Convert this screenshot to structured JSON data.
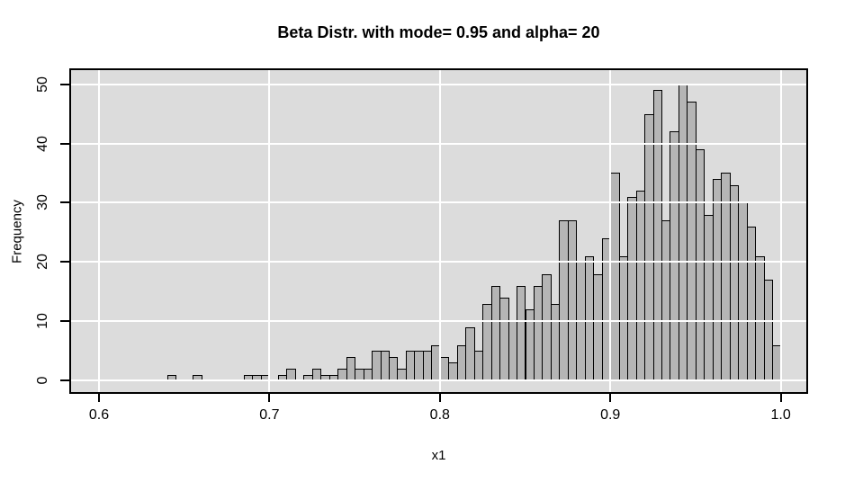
{
  "chart_data": {
    "type": "bar",
    "subtype": "histogram",
    "title": "Beta Distr. with mode= 0.95 and alpha= 20",
    "xlabel": "x1",
    "ylabel": "Frequency",
    "x_ticks": [
      "0.6",
      "0.7",
      "0.8",
      "0.9",
      "1.0"
    ],
    "x_tick_values": [
      0.6,
      0.7,
      0.8,
      0.9,
      1.0
    ],
    "y_ticks": [
      "0",
      "10",
      "20",
      "30",
      "40",
      "50"
    ],
    "y_tick_values": [
      0,
      10,
      20,
      30,
      40,
      50
    ],
    "xlim": [
      0.6,
      1.0
    ],
    "ylim": [
      0,
      50
    ],
    "grid": "white gridlines over bars",
    "legend": "none",
    "bin_width": 0.005,
    "bin_start": 0.64,
    "bin_end": 1.0,
    "total_count": 1000,
    "counts": [
      1,
      0,
      0,
      1,
      0,
      0,
      0,
      0,
      0,
      1,
      1,
      1,
      0,
      1,
      2,
      0,
      1,
      2,
      1,
      1,
      2,
      4,
      2,
      2,
      5,
      5,
      4,
      2,
      5,
      5,
      5,
      6,
      4,
      3,
      6,
      9,
      5,
      13,
      16,
      14,
      10,
      16,
      12,
      16,
      18,
      13,
      27,
      27,
      20,
      21,
      18,
      24,
      35,
      21,
      31,
      32,
      45,
      49,
      27,
      42,
      50,
      47,
      39,
      28,
      34,
      35,
      33,
      30,
      26,
      21,
      17,
      6
    ],
    "colors": {
      "plot_background": "#DCDCDC",
      "bar_fill": "#B5B5B5",
      "bar_border": "#000000",
      "gridline": "#FFFFFF",
      "box_border": "#000000",
      "page_background": "#FFFFFF",
      "text": "#000000"
    }
  }
}
